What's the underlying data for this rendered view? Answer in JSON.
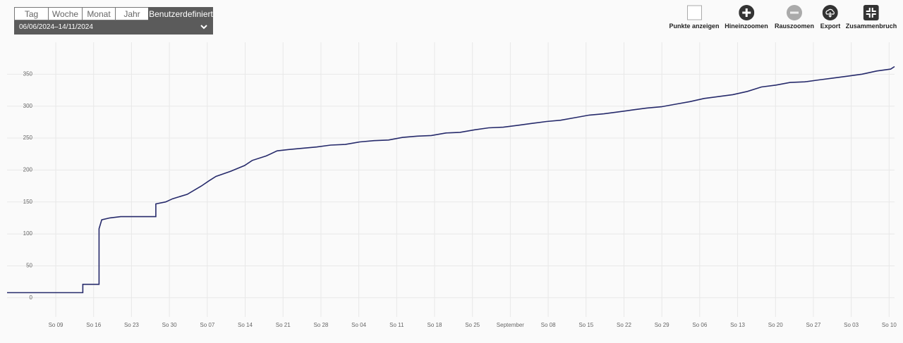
{
  "toolbar": {
    "tabs": [
      "Tag",
      "Woche",
      "Monat",
      "Jahr",
      "Benutzerdefiniert"
    ],
    "date_range": "06/06/2024–14/11/2024",
    "buttons": [
      "Punkte anzeigen",
      "Hineinzoomen",
      "Rauszoomen",
      "Export",
      "Zusammenbruch"
    ]
  },
  "chart_data": {
    "type": "line",
    "color": "#262a6b",
    "grid": true,
    "x": [
      -6,
      8,
      8,
      11,
      11,
      11.5,
      13,
      15,
      21.5,
      21.5,
      23.3,
      24.6,
      27.3,
      29.9,
      31.3,
      32.6,
      35.3,
      37.9,
      39.3,
      41.9,
      43.9,
      45.9,
      48.5,
      51.2,
      53.8,
      56.5,
      59.2,
      61.8,
      64.5,
      67.1,
      69.8,
      72.4,
      75.1,
      77.7,
      80.4,
      83,
      85.7,
      88.4,
      91,
      93.7,
      96.3,
      99,
      101.6,
      104.3,
      106.9,
      109.6,
      112.2,
      114.9,
      117.5,
      120.2,
      122.8,
      125.5,
      128.1,
      130.8,
      133.4,
      136.1,
      138.7,
      141.4,
      144,
      146.7,
      149.4,
      152,
      154.7,
      157.3,
      158
    ],
    "values": [
      8,
      8,
      21,
      21,
      108,
      122,
      125,
      127,
      127,
      147,
      150,
      155,
      162,
      175,
      183,
      190,
      198,
      207,
      215,
      222,
      230,
      232,
      234,
      236,
      239,
      240,
      244,
      246,
      247,
      251,
      253,
      254,
      258,
      259,
      263,
      266,
      267,
      270,
      273,
      276,
      278,
      282,
      286,
      288,
      291,
      294,
      297,
      299,
      303,
      307,
      312,
      315,
      318,
      323,
      330,
      333,
      337,
      338,
      341,
      344,
      347,
      350,
      355,
      358,
      362
    ],
    "xlim": [
      -6,
      158
    ],
    "xticks": [
      {
        "value": 3,
        "label": "So 09"
      },
      {
        "value": 10,
        "label": "So 16"
      },
      {
        "value": 17,
        "label": "So 23"
      },
      {
        "value": 24,
        "label": "So 30"
      },
      {
        "value": 31,
        "label": "So 07"
      },
      {
        "value": 38,
        "label": "So 14"
      },
      {
        "value": 45,
        "label": "So 21"
      },
      {
        "value": 52,
        "label": "So 28"
      },
      {
        "value": 59,
        "label": "So 04"
      },
      {
        "value": 66,
        "label": "So 11"
      },
      {
        "value": 73,
        "label": "So 18"
      },
      {
        "value": 80,
        "label": "So 25"
      },
      {
        "value": 87,
        "label": "September"
      },
      {
        "value": 94,
        "label": "So 08"
      },
      {
        "value": 101,
        "label": "So 15"
      },
      {
        "value": 108,
        "label": "So 22"
      },
      {
        "value": 115,
        "label": "So 29"
      },
      {
        "value": 122,
        "label": "So 06"
      },
      {
        "value": 129,
        "label": "So 13"
      },
      {
        "value": 136,
        "label": "So 20"
      },
      {
        "value": 143,
        "label": "So 27"
      },
      {
        "value": 150,
        "label": "So 03"
      },
      {
        "value": 157,
        "label": "So 10"
      }
    ],
    "ylim": [
      -30,
      400
    ],
    "yticks": [
      0,
      50,
      100,
      150,
      200,
      250,
      300,
      350
    ]
  }
}
